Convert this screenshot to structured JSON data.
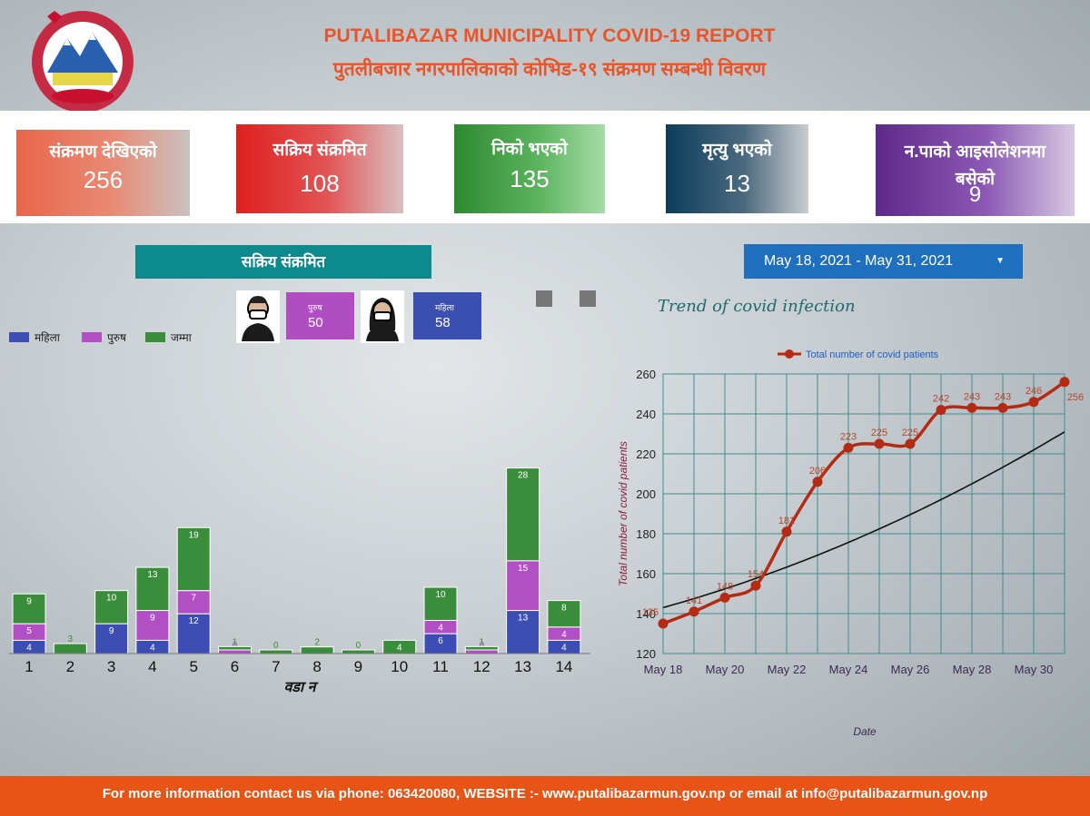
{
  "header": {
    "title_en": "PUTALIBAZAR MUNICIPALITY COVID-19 REPORT",
    "title_ne": "पुतलीबजार नगरपालिकाको कोभिड-१९ संक्रमण सम्बन्धी विवरण"
  },
  "stats": [
    {
      "label": "संक्रमण देखिएको",
      "value": "256"
    },
    {
      "label": "सक्रिय संक्रमित",
      "value": "108"
    },
    {
      "label": "निको भएको",
      "value": "135"
    },
    {
      "label": "मृत्यु भएको",
      "value": "13"
    },
    {
      "label": "न.पाको आइसोलेशनमा बसेको",
      "value": "9"
    }
  ],
  "active_panel": {
    "title": "सक्रिय संक्रमित",
    "male_label": "पुरुष",
    "male_value": "50",
    "female_label": "महिला",
    "female_value": "58"
  },
  "date_range": "May 18, 2021 - May 31, 2021",
  "trend_title": "Trend of covid infection",
  "footer": "For more information contact us via phone: 063420080, WEBSITE :- www.putalibazarmun.gov.np or email at info@putalibazarmun.gov.np",
  "colors": {
    "female": "#3c4db3",
    "male": "#b24fc5",
    "total": "#3a8e3b",
    "trend": "#b52a12",
    "accent": "#e8552a"
  },
  "chart_data": [
    {
      "type": "bar",
      "stacked": true,
      "xlabel": "वडा न",
      "categories": [
        "1",
        "2",
        "3",
        "4",
        "5",
        "6",
        "7",
        "8",
        "9",
        "10",
        "11",
        "12",
        "13",
        "14"
      ],
      "series": [
        {
          "name": "महिला",
          "values": [
            4,
            null,
            9,
            4,
            12,
            null,
            null,
            null,
            null,
            null,
            6,
            null,
            13,
            4
          ]
        },
        {
          "name": "पुरुष",
          "values": [
            5,
            null,
            null,
            9,
            7,
            0,
            null,
            null,
            null,
            null,
            4,
            0,
            15,
            4
          ]
        },
        {
          "name": "जम्मा",
          "values": [
            9,
            3,
            10,
            13,
            19,
            1,
            0,
            2,
            0,
            4,
            10,
            1,
            28,
            8
          ]
        }
      ],
      "legend": "top-left"
    },
    {
      "type": "line",
      "xlabel": "Date",
      "ylabel": "Total number of covid patients",
      "x_ticks": [
        "May 18",
        "May 20",
        "May 22",
        "May 24",
        "May 26",
        "May 28",
        "May 30"
      ],
      "ylim": [
        120,
        260
      ],
      "y_ticks": [
        120,
        140,
        160,
        180,
        200,
        220,
        240,
        260
      ],
      "series": [
        {
          "name": "Total number of covid patients",
          "x": [
            "May 18",
            "May 19",
            "May 20",
            "May 21",
            "May 22",
            "May 23",
            "May 24",
            "May 25",
            "May 26",
            "May 27",
            "May 28",
            "May 29",
            "May 30",
            "May 31"
          ],
          "values": [
            135,
            141,
            148,
            154,
            181,
            206,
            223,
            225,
            225,
            242,
            243,
            243,
            246,
            256
          ]
        }
      ],
      "trendline": true,
      "legend": "top-center",
      "grid": true
    }
  ]
}
